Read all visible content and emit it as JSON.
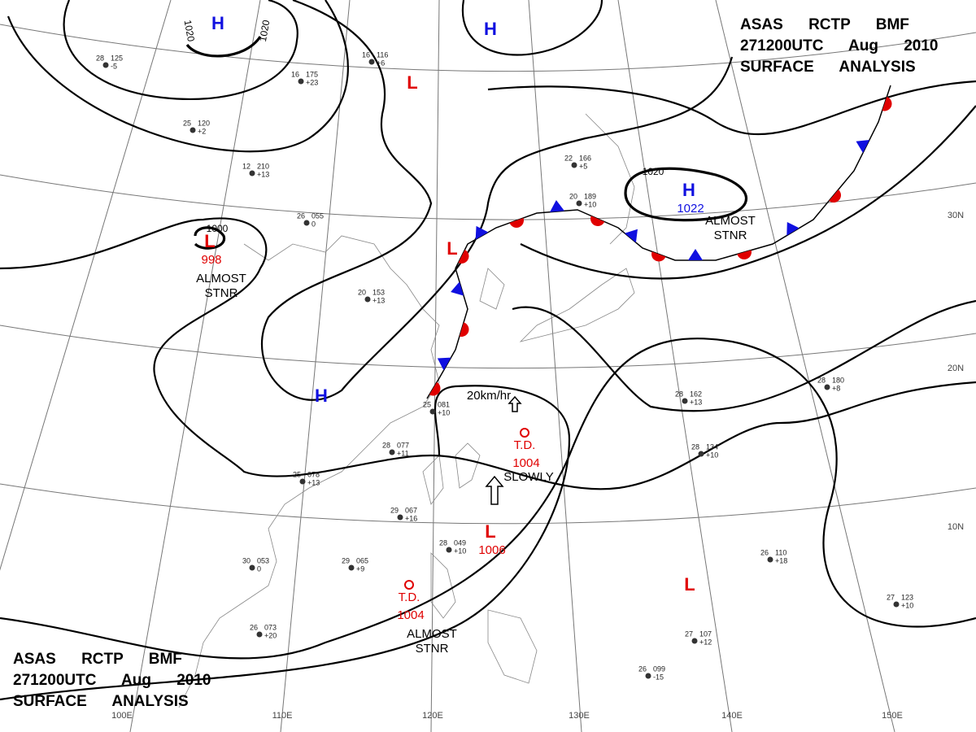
{
  "header_top": {
    "lines": [
      "ASAS RCTP BMF",
      "271200UTC Aug 2010",
      "SURFACE ANALYSIS"
    ]
  },
  "header_bottom": {
    "lines": [
      "ASAS RCTP BMF",
      "271200UTC Aug 2010",
      "SURFACE ANALYSIS"
    ]
  },
  "longitude_labels": [
    "100E",
    "110E",
    "120E",
    "130E",
    "140E",
    "150E"
  ],
  "latitude_labels": [
    "10N",
    "20N",
    "30N"
  ],
  "isobar_labels": [
    "1020",
    "1020",
    "1000",
    "1020"
  ],
  "systems": [
    {
      "label": "H",
      "color": "#1010e0"
    },
    {
      "label": "H",
      "color": "#1010e0"
    },
    {
      "label": "L",
      "color": "#e00000"
    },
    {
      "label": "L",
      "color": "#e00000",
      "pressure": "998"
    },
    {
      "label": "H",
      "color": "#1010e0"
    },
    {
      "label": "H",
      "color": "#1010e0",
      "pressure": "1022"
    },
    {
      "label": "L",
      "color": "#e00000"
    },
    {
      "label": "L",
      "color": "#e00000",
      "pressure": "1006"
    },
    {
      "label": "L",
      "color": "#e00000"
    },
    {
      "label": "T.D.",
      "color": "#e00000",
      "pressure": "1004"
    },
    {
      "label": "T.D.",
      "color": "#e00000",
      "pressure": "1004"
    }
  ],
  "annotations": [
    {
      "lines": [
        "ALMOST",
        "STNR"
      ]
    },
    {
      "lines": [
        "ALMOST",
        "STNR"
      ]
    },
    {
      "lines": [
        "ALMOST",
        "STNR"
      ]
    },
    {
      "lines": [
        "SLOWLY"
      ]
    },
    {
      "lines": [
        "20km/hr"
      ]
    }
  ],
  "stations": [
    {
      "temp": "28",
      "pressure": "125",
      "change": "-5"
    },
    {
      "temp": "16",
      "pressure": "175",
      "change": "+23"
    },
    {
      "temp": "16",
      "pressure": "116",
      "change": "+6"
    },
    {
      "temp": "25",
      "pressure": "120",
      "change": "+2"
    },
    {
      "temp": "12",
      "pressure": "210",
      "change": "+13"
    },
    {
      "temp": "26",
      "pressure": "055",
      "change": "0"
    },
    {
      "temp": "20",
      "pressure": "153",
      "change": "+13"
    },
    {
      "temp": "22",
      "pressure": "166",
      "change": "+5"
    },
    {
      "temp": "20",
      "pressure": "189",
      "change": "+10"
    },
    {
      "temp": "28",
      "pressure": "180",
      "change": "+8"
    },
    {
      "temp": "28",
      "pressure": "162",
      "change": "+13"
    },
    {
      "temp": "28",
      "pressure": "134",
      "change": "+10"
    },
    {
      "temp": "26",
      "pressure": "110",
      "change": "+18"
    },
    {
      "temp": "27",
      "pressure": "123",
      "change": "+10"
    },
    {
      "temp": "27",
      "pressure": "107",
      "change": "+12"
    },
    {
      "temp": "26",
      "pressure": "099",
      "change": "-15"
    },
    {
      "temp": "29",
      "pressure": "065",
      "change": "+9"
    },
    {
      "temp": "30",
      "pressure": "053",
      "change": "0"
    },
    {
      "temp": "26",
      "pressure": "073",
      "change": "+20"
    },
    {
      "temp": "29",
      "pressure": "067",
      "change": "+16"
    },
    {
      "temp": "28",
      "pressure": "049",
      "change": "+10"
    },
    {
      "temp": "25",
      "pressure": "078",
      "change": "+13"
    },
    {
      "temp": "28",
      "pressure": "077",
      "change": "+11"
    },
    {
      "temp": "25",
      "pressure": "081",
      "change": "+10"
    }
  ]
}
